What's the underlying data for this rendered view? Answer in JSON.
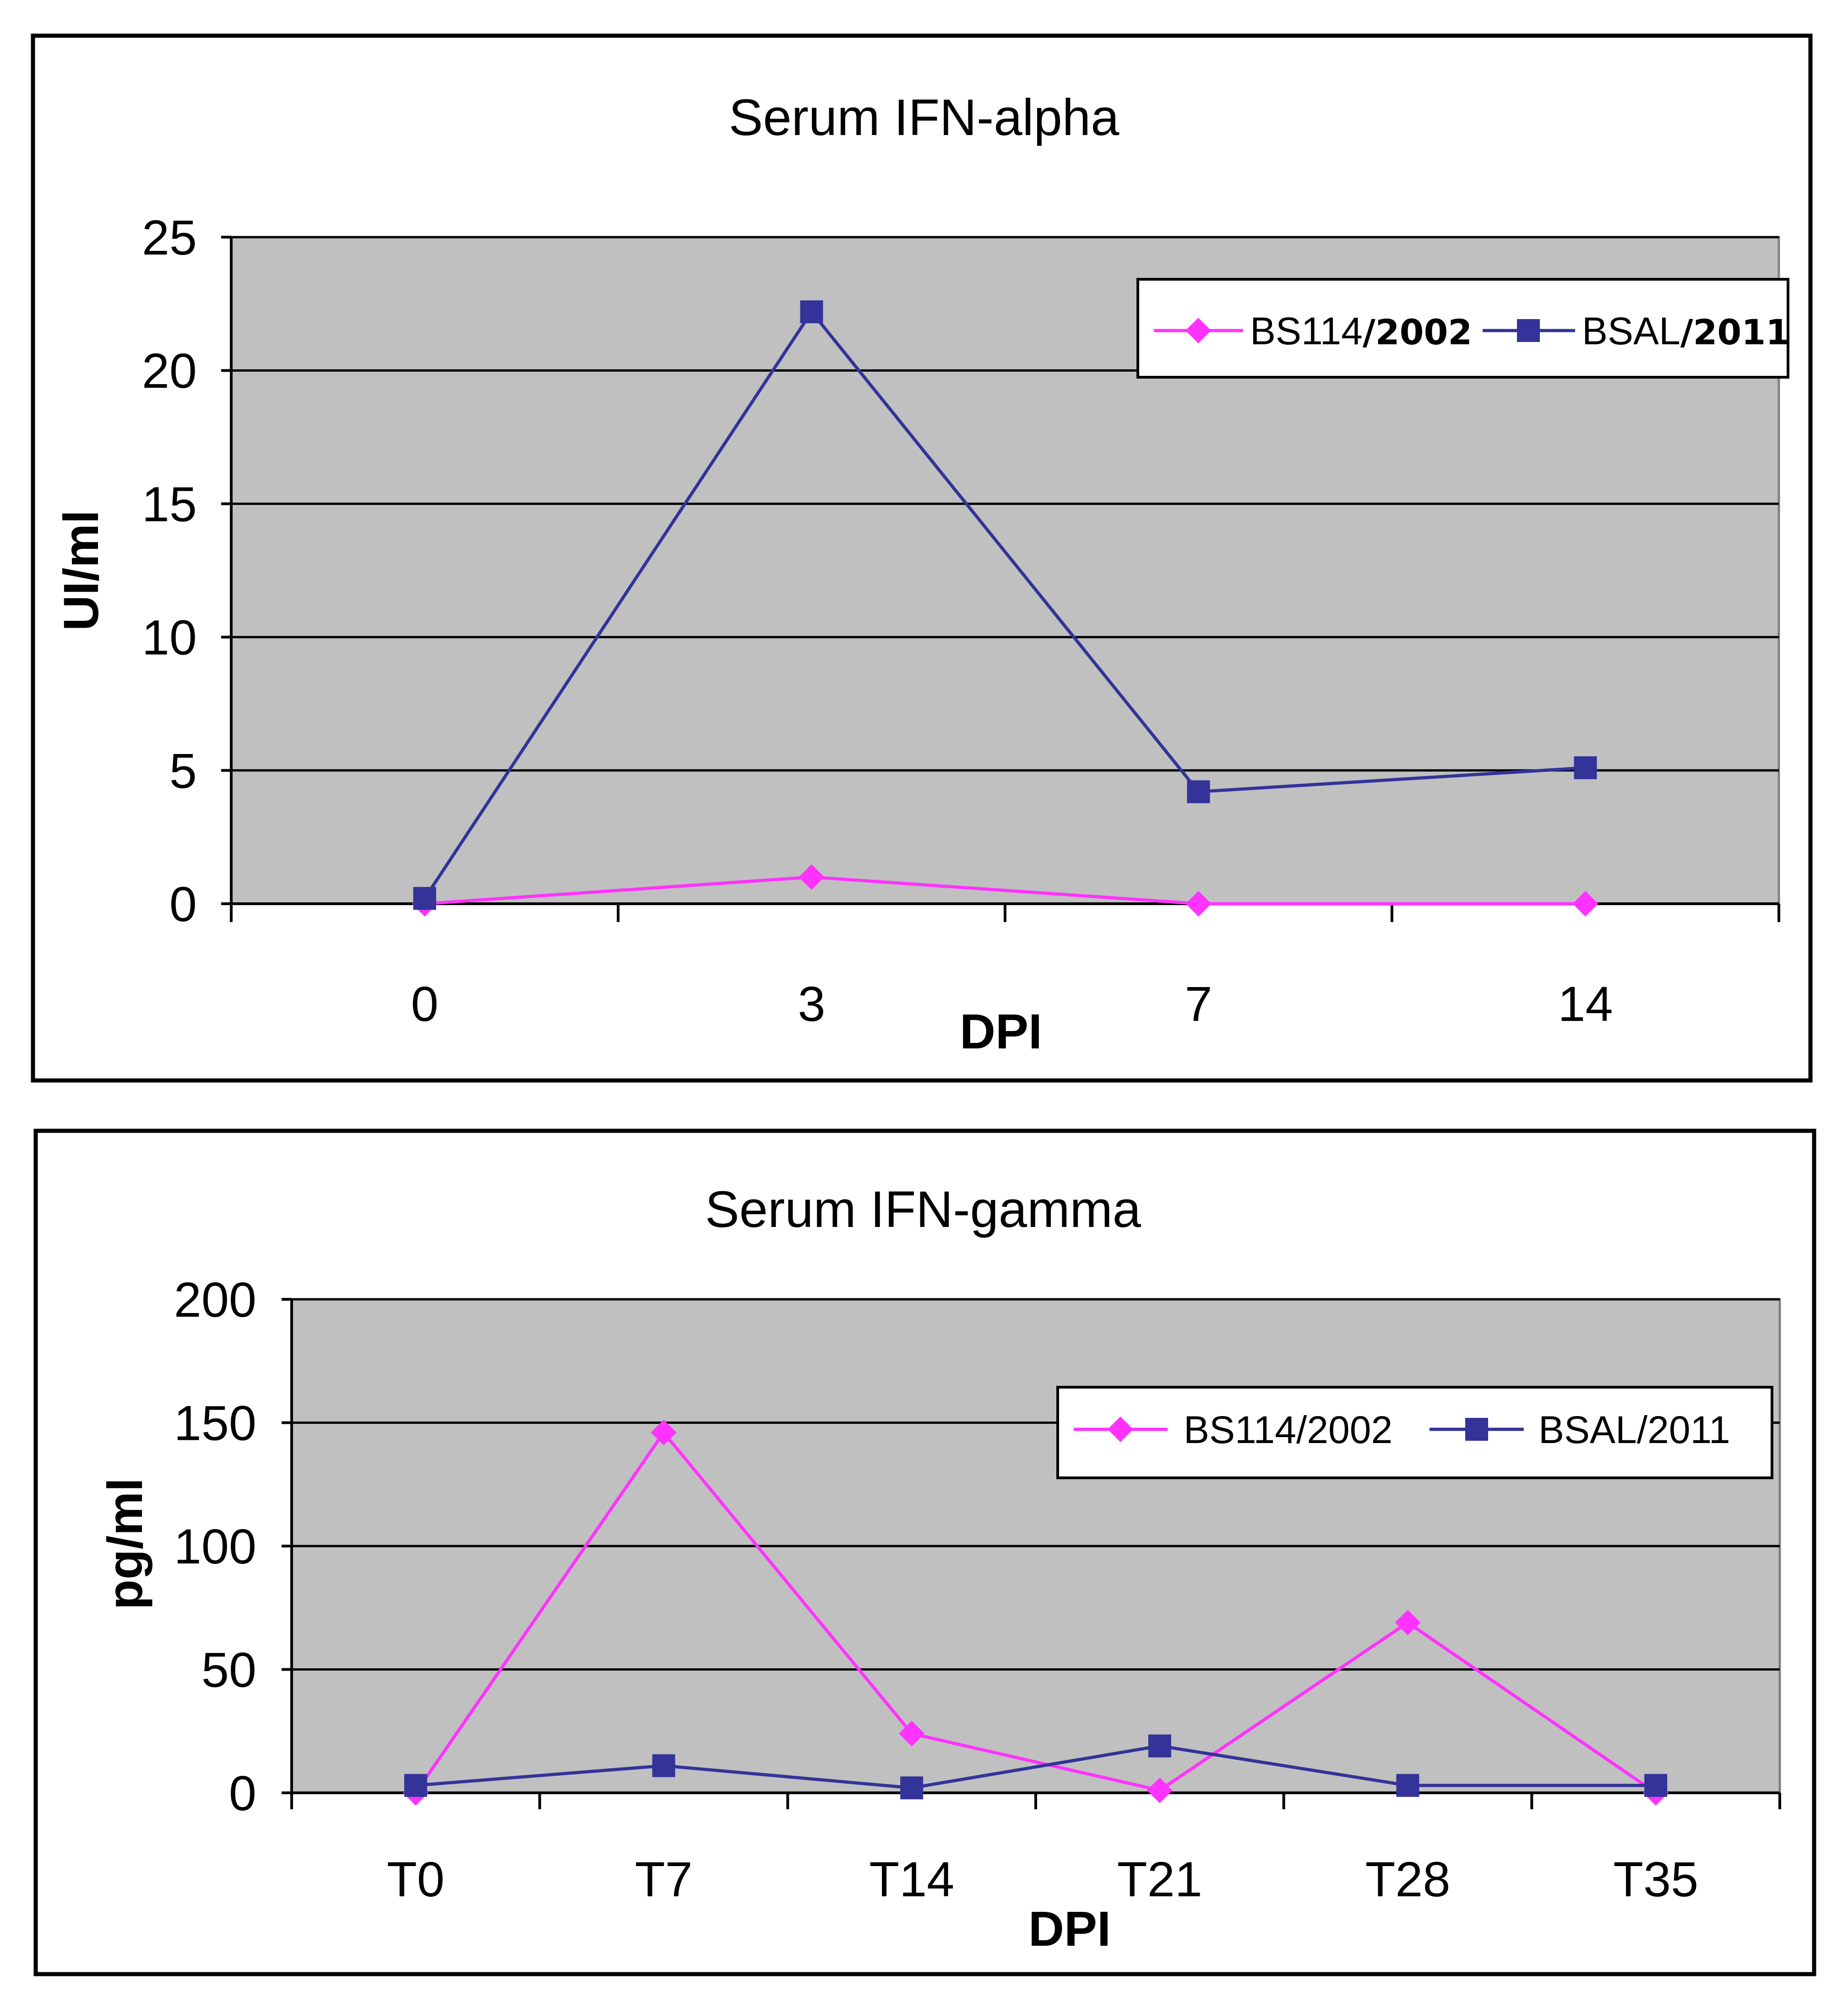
{
  "chart_data": [
    {
      "type": "line",
      "title": "Serum IFN-alpha",
      "xlabel": "DPI",
      "ylabel": "UI/ml",
      "categories": [
        "0",
        "3",
        "7",
        "14"
      ],
      "ylim": [
        0,
        25
      ],
      "yticks": [
        "0",
        "5",
        "10",
        "15",
        "20",
        "25"
      ],
      "grid": true,
      "legend_position": "top-right",
      "series": [
        {
          "name": "BS114/2002",
          "legend_name_parts": [
            "BS114",
            "/2002"
          ],
          "color": "#ff33ff",
          "marker": "diamond",
          "values": [
            0,
            1,
            0,
            0
          ]
        },
        {
          "name": "BSAL/2011",
          "legend_name_parts": [
            "BSAL",
            "/2011"
          ],
          "color": "#333399",
          "marker": "square",
          "values": [
            0.2,
            22.2,
            4.2,
            5.1
          ]
        }
      ]
    },
    {
      "type": "line",
      "title": "Serum IFN-gamma",
      "xlabel": "DPI",
      "ylabel": "pg/ml",
      "categories": [
        "T0",
        "T7",
        "T14",
        "T21",
        "T28",
        "T35"
      ],
      "ylim": [
        0,
        200
      ],
      "yticks": [
        "0",
        "50",
        "100",
        "150",
        "200"
      ],
      "grid": true,
      "legend_position": "top-right",
      "series": [
        {
          "name": "BS114/2002",
          "color": "#ff33ff",
          "marker": "diamond",
          "values": [
            0,
            146,
            24,
            1,
            69,
            0
          ]
        },
        {
          "name": "BSAL/2011",
          "color": "#333399",
          "marker": "square",
          "values": [
            3,
            11,
            2,
            19,
            3,
            3
          ]
        }
      ]
    }
  ]
}
